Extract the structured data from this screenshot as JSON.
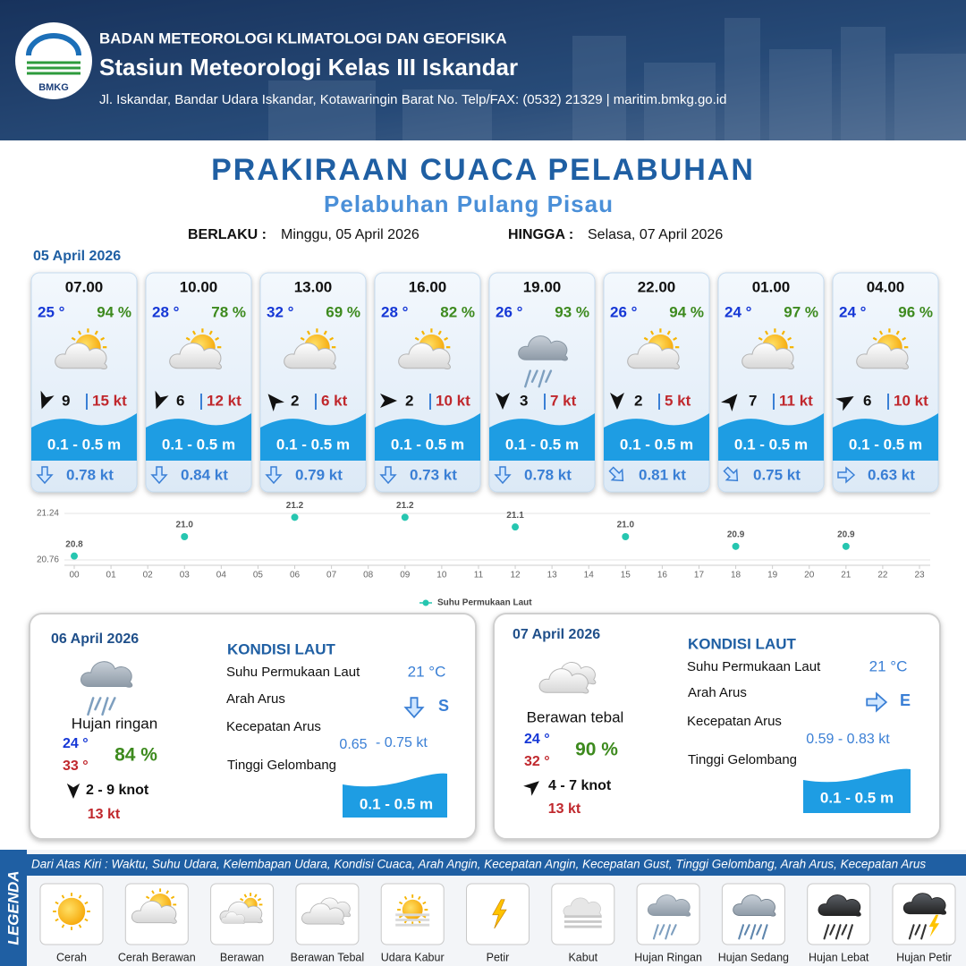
{
  "header": {
    "agency": "BADAN METEOROLOGI KLIMATOLOGI DAN GEOFISIKA",
    "station": "Stasiun Meteorologi Kelas III Iskandar",
    "address": "Jl. Iskandar, Bandar Udara Iskandar, Kotawaringin Barat No. Telp/FAX: (0532) 21329 | maritim.bmkg.go.id",
    "logo_text": "BMKG"
  },
  "title": "PRAKIRAAN CUACA PELABUHAN",
  "subtitle": "Pelabuhan Pulang Pisau",
  "validity": {
    "from_label": "BERLAKU :",
    "from": "Minggu, 05 April 2026",
    "to_label": "HINGGA :",
    "to": "Selasa, 07 April 2026"
  },
  "today": {
    "date": "05 April 2026",
    "slots": [
      {
        "time": "07.00",
        "temp": "25 °",
        "humidity": "94 %",
        "wind": "9",
        "gust": "15 kt",
        "wave": "0.1 - 0.5 m",
        "current": "0.78 kt"
      },
      {
        "time": "10.00",
        "temp": "28 °",
        "humidity": "78 %",
        "wind": "6",
        "gust": "12 kt",
        "wave": "0.1 - 0.5 m",
        "current": "0.84 kt"
      },
      {
        "time": "13.00",
        "temp": "32 °",
        "humidity": "69 %",
        "wind": "2",
        "gust": "6 kt",
        "wave": "0.1 - 0.5 m",
        "current": "0.79 kt"
      },
      {
        "time": "16.00",
        "temp": "28 °",
        "humidity": "82 %",
        "wind": "2",
        "gust": "10 kt",
        "wave": "0.1 - 0.5 m",
        "current": "0.73 kt"
      },
      {
        "time": "19.00",
        "temp": "26 °",
        "humidity": "93 %",
        "wind": "3",
        "gust": "7 kt",
        "wave": "0.1 - 0.5 m",
        "current": "0.78 kt"
      },
      {
        "time": "22.00",
        "temp": "26 °",
        "humidity": "94 %",
        "wind": "2",
        "gust": "5 kt",
        "wave": "0.1 - 0.5 m",
        "current": "0.81 kt"
      },
      {
        "time": "01.00",
        "temp": "24 °",
        "humidity": "97 %",
        "wind": "7",
        "gust": "11 kt",
        "wave": "0.1 - 0.5 m",
        "current": "0.75 kt"
      },
      {
        "time": "04.00",
        "temp": "24 °",
        "humidity": "96 %",
        "wind": "6",
        "gust": "10 kt",
        "wave": "0.1 - 0.5 m",
        "current": "0.63 kt"
      }
    ]
  },
  "chart_data": {
    "type": "scatter",
    "x": [
      0,
      3,
      6,
      9,
      12,
      15,
      18,
      21
    ],
    "series": [
      {
        "name": "Suhu Permukaan Laut",
        "color": "#26c6b0",
        "values": [
          20.8,
          21.0,
          21.2,
          21.2,
          21.1,
          21.0,
          20.9,
          20.9
        ],
        "value_labels": [
          "20.8",
          "21.0",
          "21.2",
          "21.2",
          "21.1",
          "21.0",
          "20.9",
          "20.9"
        ]
      }
    ],
    "xlim": [
      0,
      23
    ],
    "xticks": [
      {
        "value": 0,
        "label": "00"
      },
      {
        "value": 1,
        "label": "01"
      },
      {
        "value": 2,
        "label": "02"
      },
      {
        "value": 3,
        "label": "03"
      },
      {
        "value": 4,
        "label": "04"
      },
      {
        "value": 5,
        "label": "05"
      },
      {
        "value": 6,
        "label": "06"
      },
      {
        "value": 7,
        "label": "07"
      },
      {
        "value": 8,
        "label": "08"
      },
      {
        "value": 9,
        "label": "09"
      },
      10,
      11,
      12,
      13,
      14,
      15,
      16,
      17,
      18,
      19,
      20,
      21,
      22,
      23
    ],
    "ylim": [
      20.76,
      21.24
    ],
    "yticks": [
      20.76,
      21.24
    ],
    "grid": true,
    "legend": "bottom"
  },
  "outlook": [
    {
      "date": "06 April 2026",
      "weather": "Hujan ringan",
      "temp_min": "24 °",
      "temp_max": "33 °",
      "humidity": "84 %",
      "wind": "2  - 9 knot",
      "gust": "13 kt",
      "sea": {
        "title": "KONDISI LAUT",
        "sst_label": "Suhu Permukaan Laut",
        "sst": "21 °C",
        "current_dir_label": "Arah Arus",
        "current_dir": "S",
        "current_speed_label": "Kecepatan Arus",
        "current_speed": [
          "0.65",
          "- 0.75 kt"
        ],
        "wave_label": "Tinggi Gelombang",
        "wave": "0.1 - 0.5 m"
      }
    },
    {
      "date": "07 April 2026",
      "weather": "Berawan tebal",
      "temp_min": "24 °",
      "temp_max": "32 °",
      "humidity": "90 %",
      "wind": "4  - 7 knot",
      "gust": "13 kt",
      "sea": {
        "title": "KONDISI LAUT",
        "sst_label": "Suhu Permukaan Laut",
        "sst": "21 °C",
        "current_dir_label": "Arah Arus",
        "current_dir": "E",
        "current_speed_label": "Kecepatan Arus",
        "current_speed": [
          "0.59 - 0.83 kt"
        ],
        "wave_label": "Tinggi Gelombang",
        "wave": "0.1 - 0.5 m"
      }
    }
  ],
  "legend": {
    "title": "LEGENDA",
    "description": "Dari Atas Kiri : Waktu, Suhu Udara, Kelembapan Udara, Kondisi Cuaca, Arah Angin, Kecepatan Angin, Kecepatan Gust, Tinggi Gelombang, Arah Arus, Kecepatan Arus",
    "items": [
      "Cerah",
      "Cerah Berawan",
      "Berawan",
      "Berawan Tebal",
      "Udara Kabur",
      "Petir",
      "Kabut",
      "Hujan Ringan",
      "Hujan Sedang",
      "Hujan Lebat",
      "Hujan Petir"
    ]
  }
}
